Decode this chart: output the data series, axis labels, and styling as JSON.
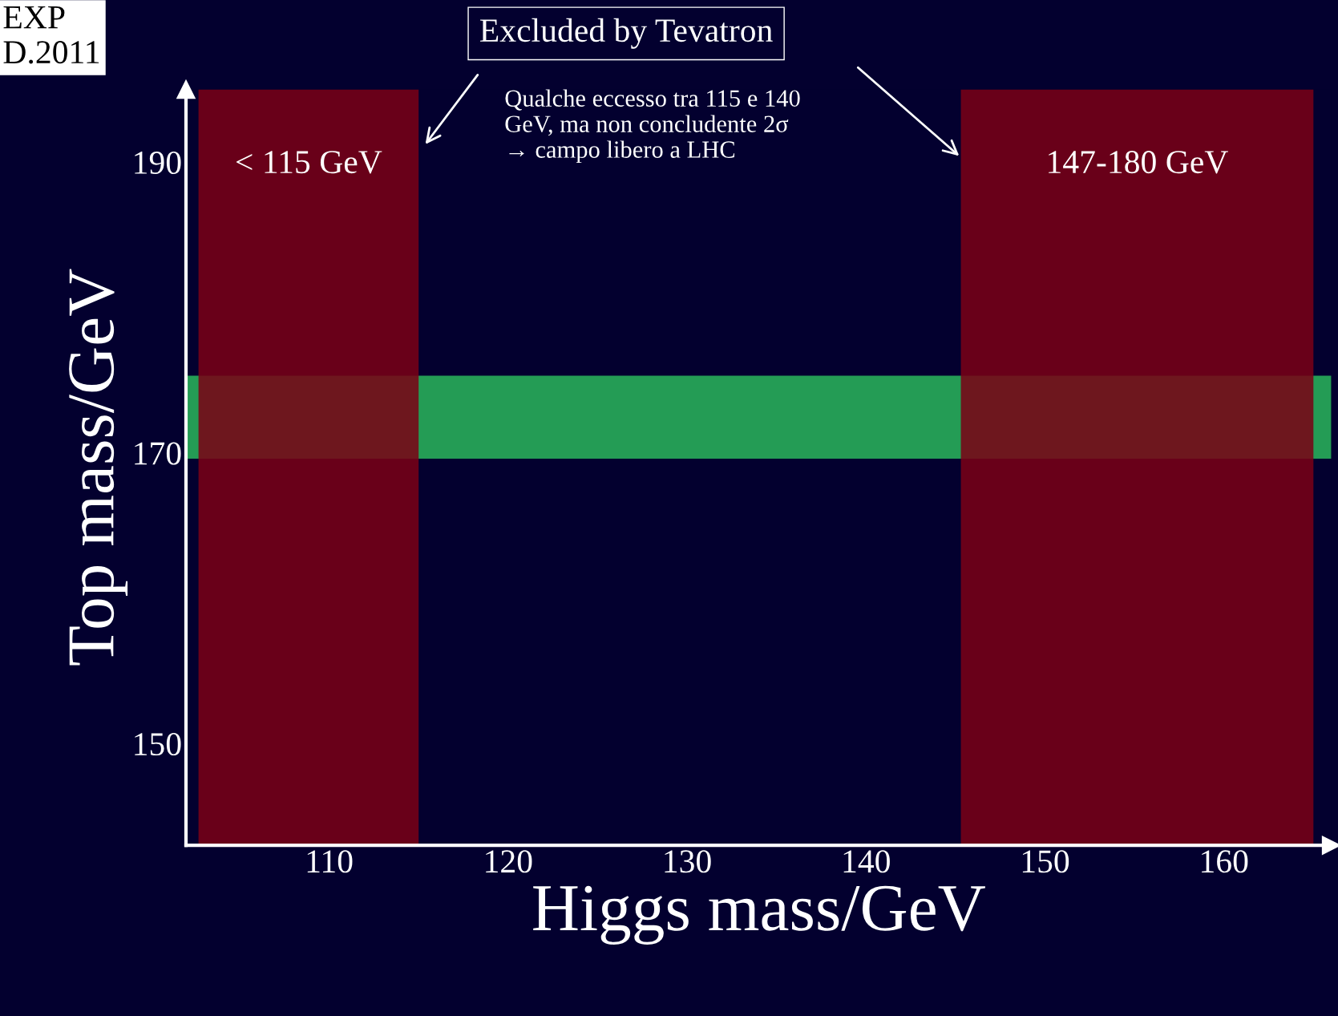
{
  "chart_data": {
    "type": "scatter",
    "xlabel": "Higgs mass/GeV",
    "ylabel": "Top mass/GeV",
    "xlim": [
      102,
      166
    ],
    "ylim": [
      143,
      195
    ],
    "xticks": [
      110,
      120,
      130,
      140,
      150,
      160
    ],
    "yticks": [
      150,
      170,
      190
    ],
    "bands": [
      {
        "axis": "y",
        "from": 169.6,
        "to": 175.3,
        "color": "#249c55"
      },
      {
        "axis": "x",
        "from": 102.7,
        "to": 115,
        "label": "< 115 GeV",
        "color": "#7b0015"
      },
      {
        "axis": "x",
        "from": 145.3,
        "to": 165,
        "label": "147-180 GeV",
        "color": "#7b0015"
      }
    ],
    "annotations": [
      "EXP\nD.2011",
      "Excluded by Tevatron",
      "Qualche eccesso tra 115 e 140\nGeV, ma non concludente 2σ\n→ campo libero a LHC"
    ],
    "legend": false
  }
}
